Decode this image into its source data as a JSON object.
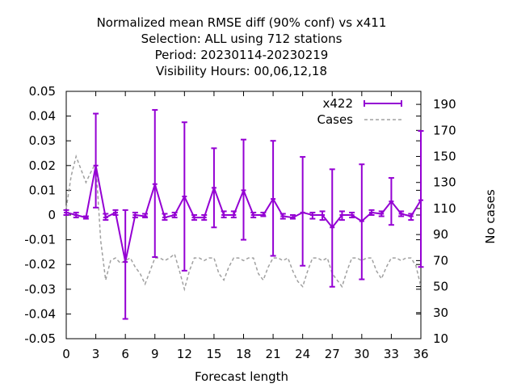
{
  "chart_data": {
    "type": "line",
    "title_lines": [
      "Normalized mean RMSE diff (90% conf) vs x411",
      "Selection: ALL using   712 stations",
      "Period: 20230114-20230219",
      "Visibility   Hours:  00,06,12,18"
    ],
    "xlabel": "Forecast length",
    "ylabel_right": "No cases",
    "xlim": [
      0,
      36
    ],
    "ylim": [
      -0.05,
      0.05
    ],
    "y2lim": [
      10,
      200
    ],
    "xticks": [
      "0",
      "3",
      "6",
      "9",
      "12",
      "15",
      "18",
      "21",
      "24",
      "27",
      "30",
      "33",
      "36"
    ],
    "yticks": [
      "-0.05",
      "-0.04",
      "-0.03",
      "-0.02",
      "-0.01",
      "0",
      "0.01",
      "0.02",
      "0.03",
      "0.04",
      "0.05"
    ],
    "y2ticks": [
      "10",
      "30",
      "50",
      "70",
      "90",
      "110",
      "130",
      "150",
      "170",
      "190"
    ],
    "legend_position": "top-right",
    "series": [
      {
        "name": "x422",
        "color": "#9400d3",
        "x": [
          0,
          1,
          2,
          3,
          4,
          5,
          6,
          7,
          8,
          9,
          10,
          11,
          12,
          13,
          14,
          15,
          16,
          17,
          18,
          19,
          20,
          21,
          22,
          23,
          24,
          25,
          26,
          27,
          28,
          29,
          30,
          31,
          32,
          33,
          34,
          35,
          36
        ],
        "y": [
          0.001,
          0.0,
          -0.001,
          0.02,
          -0.001,
          0.001,
          -0.019,
          0.0,
          -0.0005,
          0.0125,
          -0.001,
          0.0,
          0.0075,
          -0.001,
          -0.001,
          0.011,
          0.0,
          0.0,
          0.01,
          0.0,
          0.0,
          0.0065,
          -0.0005,
          -0.001,
          0.001,
          0.0,
          0.0,
          -0.005,
          0.0,
          0.0,
          -0.0025,
          0.001,
          0.0005,
          0.0055,
          0.0005,
          -0.0005,
          0.006
        ],
        "err_low": [
          0.0,
          -0.001,
          -0.0015,
          0.003,
          -0.002,
          0.0,
          -0.042,
          -0.001,
          -0.001,
          -0.017,
          -0.002,
          -0.001,
          -0.0225,
          -0.002,
          -0.002,
          -0.005,
          -0.001,
          -0.001,
          -0.01,
          -0.001,
          -0.0005,
          -0.0165,
          -0.0015,
          -0.0015,
          -0.0205,
          -0.0015,
          -0.002,
          -0.029,
          -0.002,
          -0.001,
          -0.026,
          0.0,
          -0.0005,
          -0.004,
          -0.0005,
          -0.002,
          -0.021
        ],
        "err_high": [
          0.002,
          0.001,
          -0.0005,
          0.041,
          0.0005,
          0.002,
          0.002,
          0.001,
          0.0005,
          0.0425,
          0.0005,
          0.001,
          0.0375,
          0.0,
          0.0,
          0.027,
          0.0015,
          0.0015,
          0.0305,
          0.001,
          0.001,
          0.03,
          0.0005,
          0.0,
          0.0235,
          0.001,
          0.0015,
          0.0185,
          0.0015,
          0.001,
          0.0205,
          0.002,
          0.0015,
          0.015,
          0.0015,
          0.0005,
          0.034
        ]
      },
      {
        "name": "Cases",
        "color": "#a0a0a0",
        "axis": "right",
        "x": [
          0,
          0.5,
          1,
          1.5,
          2,
          2.5,
          3,
          3.5,
          4,
          4.5,
          5,
          5.5,
          6,
          6.5,
          7,
          7.5,
          8,
          8.5,
          9,
          9.5,
          10,
          10.5,
          11,
          11.5,
          12,
          12.5,
          13,
          13.5,
          14,
          14.5,
          15,
          15.5,
          16,
          16.5,
          17,
          17.5,
          18,
          18.5,
          19,
          19.5,
          20,
          20.5,
          21,
          21.5,
          22,
          22.5,
          23,
          23.5,
          24,
          24.5,
          25,
          25.5,
          26,
          26.5,
          27,
          27.5,
          28,
          28.5,
          29,
          29.5,
          30,
          30.5,
          31,
          31.5,
          32,
          32.5,
          33,
          33.5,
          34,
          34.5,
          35,
          35.5,
          36
        ],
        "y": [
          110,
          135,
          150,
          140,
          130,
          138,
          145,
          85,
          55,
          70,
          72,
          68,
          70,
          72,
          65,
          60,
          52,
          62,
          72,
          72,
          70,
          72,
          75,
          62,
          48,
          62,
          72,
          72,
          70,
          72,
          72,
          60,
          55,
          65,
          72,
          72,
          70,
          72,
          72,
          60,
          55,
          65,
          72,
          72,
          70,
          72,
          62,
          54,
          50,
          62,
          72,
          72,
          70,
          72,
          60,
          55,
          50,
          62,
          72,
          72,
          70,
          72,
          72,
          62,
          56,
          65,
          72,
          72,
          70,
          72,
          72,
          66,
          50
        ]
      }
    ]
  }
}
